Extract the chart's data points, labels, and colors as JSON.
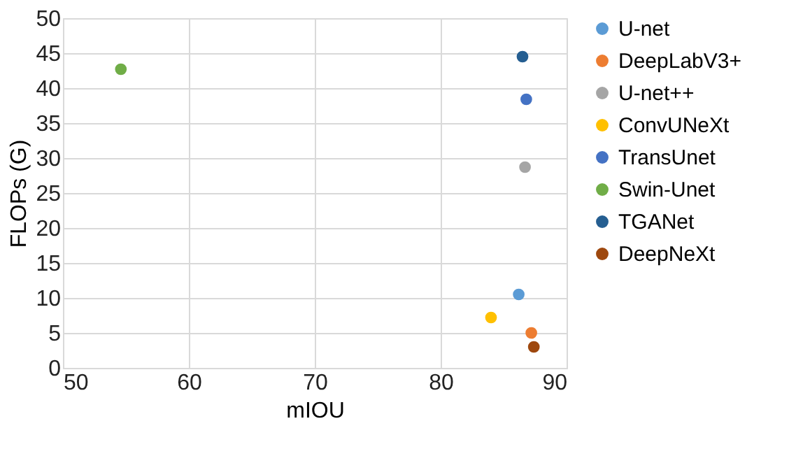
{
  "chart_data": {
    "type": "scatter",
    "xlabel": "mIOU",
    "ylabel": "FLOPs (G)",
    "xlim": [
      50,
      90
    ],
    "xticks": [
      50,
      60,
      70,
      80,
      90
    ],
    "ylim": [
      0,
      50
    ],
    "yticks": [
      0,
      5,
      10,
      15,
      20,
      25,
      30,
      35,
      40,
      45,
      50
    ],
    "grid": true,
    "legend": "right",
    "marker": "circle",
    "series": [
      {
        "name": "U-net",
        "color": "#5b9bd5",
        "x": [
          86.2
        ],
        "values": [
          10.5
        ]
      },
      {
        "name": "DeepLabV3+",
        "color": "#ed7d31",
        "x": [
          87.2
        ],
        "values": [
          5.0
        ]
      },
      {
        "name": "U-net++",
        "color": "#a5a5a5",
        "x": [
          86.7
        ],
        "values": [
          28.7
        ]
      },
      {
        "name": "ConvUNeXt",
        "color": "#ffc000",
        "x": [
          84.0
        ],
        "values": [
          7.2
        ]
      },
      {
        "name": "TransUnet",
        "color": "#4472c4",
        "x": [
          86.8
        ],
        "values": [
          38.4
        ]
      },
      {
        "name": "Swin-Unet",
        "color": "#70ad47",
        "x": [
          54.6
        ],
        "values": [
          42.7
        ]
      },
      {
        "name": "TGANet",
        "color": "#255e91",
        "x": [
          86.5
        ],
        "values": [
          44.5
        ]
      },
      {
        "name": "DeepNeXt",
        "color": "#9e480e",
        "x": [
          87.4
        ],
        "values": [
          3.0
        ]
      }
    ]
  }
}
